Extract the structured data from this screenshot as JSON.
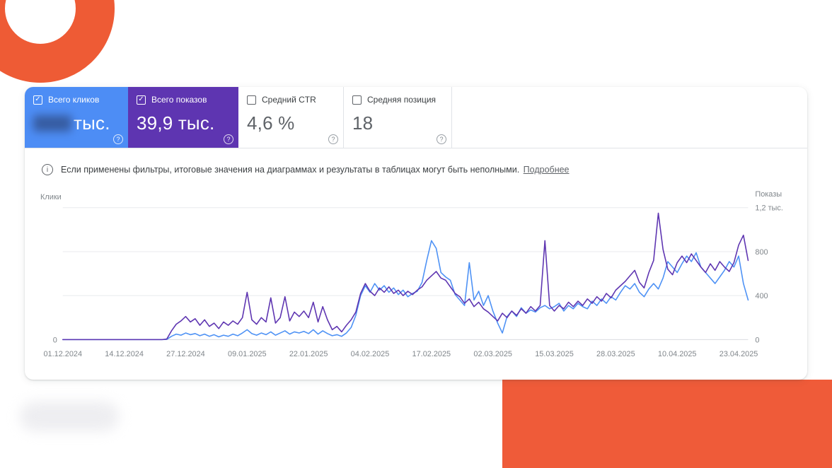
{
  "colors": {
    "clicks_card": "#4d8df5",
    "impressions_card": "#5e35b1",
    "clicks_line": "#4e92f5",
    "impressions_line": "#5e35b1",
    "orange_decor": "#ef5b39"
  },
  "icons": {
    "help": "?",
    "check": "✓",
    "info": "i"
  },
  "metrics": [
    {
      "label": "Всего кликов",
      "value": "тыс.",
      "checked": true,
      "value_partially_blurred": true
    },
    {
      "label": "Всего показов",
      "value": "39,9 тыс.",
      "checked": true
    },
    {
      "label": "Средний CTR",
      "value": "4,6 %",
      "checked": false
    },
    {
      "label": "Средняя позиция",
      "value": "18",
      "checked": false
    }
  ],
  "info_banner": {
    "text": "Если применены фильтры, итоговые значения на диаграммах и результаты в таблицах могут быть неполными.",
    "link": "Подробнее"
  },
  "chart_data": {
    "type": "line",
    "grid": true,
    "ylim": [
      0,
      1200
    ],
    "left_axis": {
      "label": "Клики",
      "ticks": [
        "0"
      ]
    },
    "right_axis": {
      "label": "Показы",
      "ticks": [
        "1,2 тыс.",
        "800",
        "400",
        "0"
      ],
      "tick_values": [
        1200,
        800,
        400,
        0
      ]
    },
    "x_tick_labels": [
      "01.12.2024",
      "14.12.2024",
      "27.12.2024",
      "09.01.2025",
      "22.01.2025",
      "04.02.2025",
      "17.02.2025",
      "02.03.2025",
      "15.03.2025",
      "28.03.2025",
      "10.04.2025",
      "23.04.2025"
    ],
    "x_tick_day_index": [
      0,
      13,
      26,
      39,
      52,
      65,
      78,
      91,
      104,
      117,
      130,
      143
    ],
    "series": [
      {
        "name": "Клики",
        "color": "#4e92f5",
        "values": [
          0,
          0,
          0,
          0,
          0,
          0,
          0,
          0,
          0,
          0,
          0,
          0,
          0,
          0,
          0,
          0,
          0,
          0,
          0,
          0,
          0,
          0,
          2,
          30,
          50,
          40,
          60,
          45,
          55,
          35,
          50,
          30,
          45,
          25,
          40,
          30,
          50,
          35,
          60,
          90,
          55,
          40,
          60,
          45,
          70,
          40,
          60,
          80,
          50,
          70,
          60,
          75,
          55,
          90,
          50,
          80,
          55,
          35,
          45,
          30,
          60,
          110,
          220,
          400,
          490,
          430,
          510,
          450,
          490,
          430,
          470,
          410,
          450,
          390,
          420,
          440,
          520,
          720,
          900,
          830,
          610,
          570,
          540,
          410,
          360,
          310,
          700,
          360,
          440,
          310,
          400,
          260,
          150,
          60,
          210,
          260,
          210,
          290,
          240,
          270,
          250,
          290,
          310,
          280,
          300,
          330,
          260,
          310,
          280,
          330,
          300,
          280,
          350,
          310,
          370,
          330,
          390,
          360,
          430,
          490,
          460,
          510,
          430,
          390,
          460,
          510,
          460,
          560,
          710,
          660,
          610,
          690,
          760,
          710,
          790,
          660,
          610,
          560,
          510,
          570,
          630,
          710,
          660,
          760,
          510,
          360
        ]
      },
      {
        "name": "Показы",
        "color": "#5e35b1",
        "values": [
          0,
          0,
          0,
          0,
          0,
          0,
          0,
          0,
          0,
          0,
          0,
          0,
          0,
          0,
          0,
          0,
          0,
          0,
          0,
          0,
          0,
          0,
          5,
          80,
          140,
          170,
          210,
          160,
          190,
          130,
          180,
          120,
          150,
          100,
          160,
          130,
          170,
          140,
          200,
          430,
          180,
          140,
          200,
          160,
          380,
          150,
          200,
          390,
          170,
          250,
          210,
          260,
          200,
          340,
          160,
          300,
          180,
          90,
          120,
          70,
          130,
          180,
          250,
          420,
          510,
          440,
          400,
          470,
          430,
          480,
          420,
          450,
          400,
          440,
          410,
          450,
          480,
          540,
          580,
          620,
          560,
          540,
          480,
          420,
          390,
          330,
          370,
          300,
          340,
          280,
          250,
          210,
          170,
          240,
          200,
          260,
          220,
          280,
          240,
          300,
          260,
          310,
          900,
          310,
          260,
          310,
          280,
          340,
          300,
          350,
          310,
          370,
          330,
          390,
          350,
          420,
          380,
          450,
          490,
          530,
          580,
          630,
          520,
          470,
          610,
          720,
          1150,
          820,
          640,
          590,
          700,
          760,
          700,
          780,
          720,
          660,
          610,
          690,
          630,
          710,
          660,
          620,
          700,
          860,
          950,
          720
        ]
      }
    ]
  }
}
